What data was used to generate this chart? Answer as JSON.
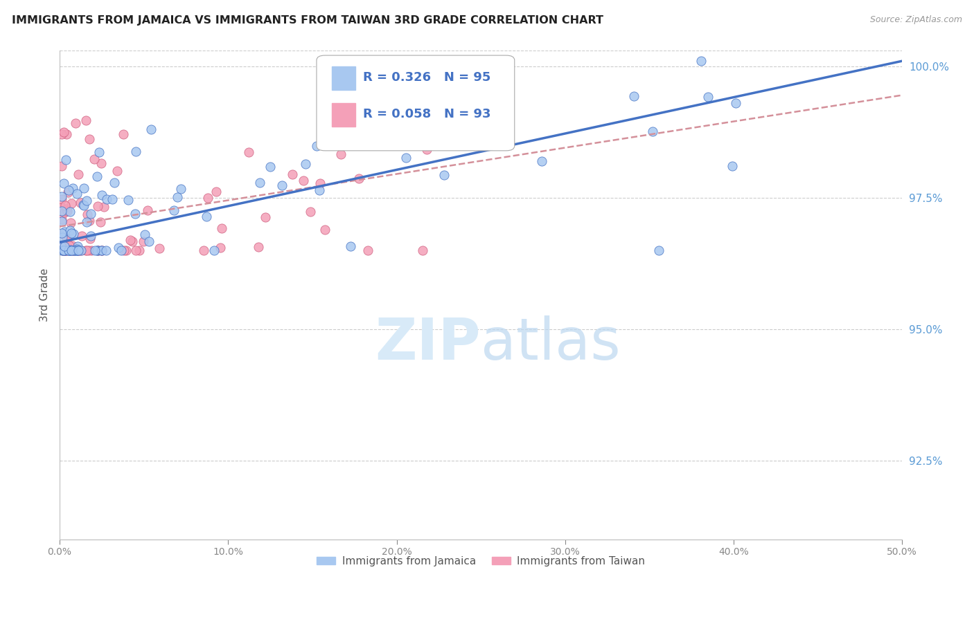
{
  "title": "IMMIGRANTS FROM JAMAICA VS IMMIGRANTS FROM TAIWAN 3RD GRADE CORRELATION CHART",
  "source": "Source: ZipAtlas.com",
  "ylabel": "3rd Grade",
  "xlim": [
    0.0,
    0.5
  ],
  "ylim": [
    0.91,
    1.003
  ],
  "xtick_labels": [
    "0.0%",
    "10.0%",
    "20.0%",
    "30.0%",
    "40.0%",
    "50.0%"
  ],
  "xtick_values": [
    0.0,
    0.1,
    0.2,
    0.3,
    0.4,
    0.5
  ],
  "ytick_labels": [
    "92.5%",
    "95.0%",
    "97.5%",
    "100.0%"
  ],
  "ytick_values": [
    0.925,
    0.95,
    0.975,
    1.0
  ],
  "color_jamaica": "#A8C8F0",
  "color_taiwan": "#F4A0B8",
  "trendline_jamaica_color": "#4472C4",
  "trendline_taiwan_color": "#D4909A",
  "legend_R_jamaica": "R = 0.326",
  "legend_N_jamaica": "N = 95",
  "legend_R_taiwan": "R = 0.058",
  "legend_N_taiwan": "N = 93",
  "background_color": "#FFFFFF",
  "grid_color": "#CCCCCC",
  "axis_label_color": "#5B9BD5",
  "title_color": "#222222",
  "trendline_jam_x0": 0.0,
  "trendline_jam_y0": 0.9665,
  "trendline_jam_x1": 0.5,
  "trendline_jam_y1": 1.001,
  "trendline_tai_x0": 0.0,
  "trendline_tai_y0": 0.9695,
  "trendline_tai_x1": 0.5,
  "trendline_tai_y1": 0.9945
}
